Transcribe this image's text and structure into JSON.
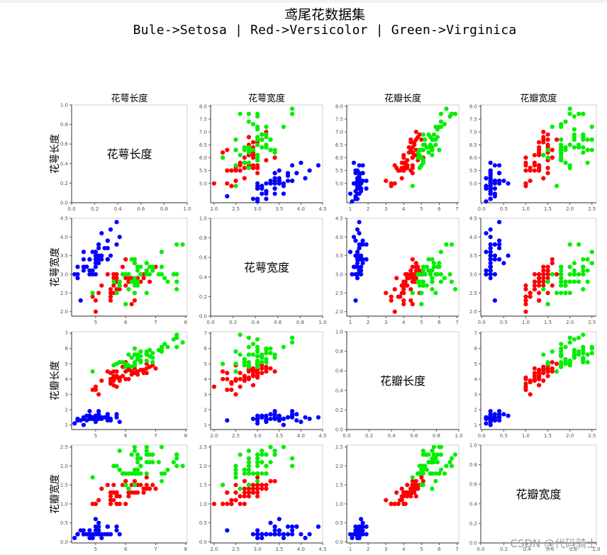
{
  "header": {
    "title": "鸢尾花数据集",
    "subtitle": "Bule->Setosa | Red->Versicolor | Green->Virginica"
  },
  "watermark": "CSDN @代码骑士",
  "colors": {
    "Setosa": "#0000ff",
    "Versicolor": "#ff0000",
    "Virginica": "#00ee00"
  },
  "chart_data": {
    "type": "scatter",
    "title": "鸢尾花数据集",
    "subtitle": "Bule->Setosa | Red->Versicolor | Green->Virginica",
    "layout": "4x4 scatter matrix (pair plot); diagonal panels show feature name text on empty 0-1 axes",
    "features": [
      "花萼长度",
      "花萼宽度",
      "花瓣长度",
      "花瓣宽度"
    ],
    "column_titles": [
      "花萼长度",
      "花萼宽度",
      "花瓣长度",
      "花瓣宽度"
    ],
    "row_labels": [
      "花萼长度",
      "花萼宽度",
      "花瓣长度",
      "花瓣宽度"
    ],
    "legend": [
      {
        "name": "Setosa",
        "color": "blue"
      },
      {
        "name": "Versicolor",
        "color": "red"
      },
      {
        "name": "Virginica",
        "color": "green"
      }
    ],
    "axes": {
      "花萼长度": {
        "range": [
          4.3,
          8.0
        ],
        "ticks": [
          5,
          6,
          7,
          8
        ]
      },
      "花萼宽度": {
        "range": [
          2.0,
          4.5
        ],
        "ticks": [
          2.0,
          2.5,
          3.0,
          3.5,
          4.0,
          4.5
        ],
        "xticks": [
          2.0,
          2.5,
          3.0,
          3.5,
          4.0,
          4.5
        ]
      },
      "花瓣长度": {
        "range": [
          1.0,
          7.0
        ],
        "ticks": [
          1,
          2,
          3,
          4,
          5,
          6,
          7
        ]
      },
      "花瓣宽度": {
        "range": [
          0.0,
          2.5
        ],
        "ticks": [
          0.0,
          0.5,
          1.0,
          1.5,
          2.0,
          2.5
        ]
      },
      "diagonal": {
        "range": [
          0.0,
          1.0
        ],
        "ticks": [
          0.0,
          0.2,
          0.4,
          0.6,
          0.8,
          1.0
        ]
      }
    },
    "grid": false,
    "series": [
      {
        "name": "Setosa",
        "color": "#0000ff",
        "points": [
          [
            5.1,
            3.5,
            1.4,
            0.2
          ],
          [
            4.9,
            3.0,
            1.4,
            0.2
          ],
          [
            4.7,
            3.2,
            1.3,
            0.2
          ],
          [
            4.6,
            3.1,
            1.5,
            0.2
          ],
          [
            5.0,
            3.6,
            1.4,
            0.2
          ],
          [
            5.4,
            3.9,
            1.7,
            0.4
          ],
          [
            4.6,
            3.4,
            1.4,
            0.3
          ],
          [
            5.0,
            3.4,
            1.5,
            0.2
          ],
          [
            4.4,
            2.9,
            1.4,
            0.2
          ],
          [
            4.9,
            3.1,
            1.5,
            0.1
          ],
          [
            5.4,
            3.7,
            1.5,
            0.2
          ],
          [
            4.8,
            3.4,
            1.6,
            0.2
          ],
          [
            4.8,
            3.0,
            1.4,
            0.1
          ],
          [
            4.3,
            3.0,
            1.1,
            0.1
          ],
          [
            5.8,
            4.0,
            1.2,
            0.2
          ],
          [
            5.7,
            4.4,
            1.5,
            0.4
          ],
          [
            5.4,
            3.9,
            1.3,
            0.4
          ],
          [
            5.1,
            3.5,
            1.4,
            0.3
          ],
          [
            5.7,
            3.8,
            1.7,
            0.3
          ],
          [
            5.1,
            3.8,
            1.5,
            0.3
          ],
          [
            5.4,
            3.4,
            1.7,
            0.2
          ],
          [
            5.1,
            3.7,
            1.5,
            0.4
          ],
          [
            4.6,
            3.6,
            1.0,
            0.2
          ],
          [
            5.1,
            3.3,
            1.7,
            0.5
          ],
          [
            4.8,
            3.4,
            1.9,
            0.2
          ],
          [
            5.0,
            3.0,
            1.6,
            0.2
          ],
          [
            5.0,
            3.4,
            1.6,
            0.4
          ],
          [
            5.2,
            3.5,
            1.5,
            0.2
          ],
          [
            5.2,
            3.4,
            1.4,
            0.2
          ],
          [
            4.7,
            3.2,
            1.6,
            0.2
          ],
          [
            4.8,
            3.1,
            1.6,
            0.2
          ],
          [
            5.4,
            3.4,
            1.5,
            0.4
          ],
          [
            5.2,
            4.1,
            1.5,
            0.1
          ],
          [
            5.5,
            4.2,
            1.4,
            0.2
          ],
          [
            4.9,
            3.1,
            1.5,
            0.2
          ],
          [
            5.0,
            3.2,
            1.2,
            0.2
          ],
          [
            5.5,
            3.5,
            1.3,
            0.2
          ],
          [
            4.9,
            3.6,
            1.4,
            0.1
          ],
          [
            4.4,
            3.0,
            1.3,
            0.2
          ],
          [
            5.1,
            3.4,
            1.5,
            0.2
          ],
          [
            5.0,
            3.5,
            1.3,
            0.3
          ],
          [
            4.5,
            2.3,
            1.3,
            0.3
          ],
          [
            4.4,
            3.2,
            1.3,
            0.2
          ],
          [
            5.0,
            3.5,
            1.6,
            0.6
          ],
          [
            5.1,
            3.8,
            1.9,
            0.4
          ],
          [
            4.8,
            3.0,
            1.4,
            0.3
          ],
          [
            5.1,
            3.8,
            1.6,
            0.2
          ],
          [
            4.6,
            3.2,
            1.4,
            0.2
          ],
          [
            5.3,
            3.7,
            1.5,
            0.2
          ],
          [
            5.0,
            3.3,
            1.4,
            0.2
          ]
        ]
      },
      {
        "name": "Versicolor",
        "color": "#ff0000",
        "points": [
          [
            7.0,
            3.2,
            4.7,
            1.4
          ],
          [
            6.4,
            3.2,
            4.5,
            1.5
          ],
          [
            6.9,
            3.1,
            4.9,
            1.5
          ],
          [
            5.5,
            2.3,
            4.0,
            1.3
          ],
          [
            6.5,
            2.8,
            4.6,
            1.5
          ],
          [
            5.7,
            2.8,
            4.5,
            1.3
          ],
          [
            6.3,
            3.3,
            4.7,
            1.6
          ],
          [
            4.9,
            2.4,
            3.3,
            1.0
          ],
          [
            6.6,
            2.9,
            4.6,
            1.3
          ],
          [
            5.2,
            2.7,
            3.9,
            1.4
          ],
          [
            5.0,
            2.0,
            3.5,
            1.0
          ],
          [
            5.9,
            3.0,
            4.2,
            1.5
          ],
          [
            6.0,
            2.2,
            4.0,
            1.0
          ],
          [
            6.1,
            2.9,
            4.7,
            1.4
          ],
          [
            5.6,
            2.9,
            3.6,
            1.3
          ],
          [
            6.7,
            3.1,
            4.4,
            1.4
          ],
          [
            5.6,
            3.0,
            4.5,
            1.5
          ],
          [
            5.8,
            2.7,
            4.1,
            1.0
          ],
          [
            6.2,
            2.2,
            4.5,
            1.5
          ],
          [
            5.6,
            2.5,
            3.9,
            1.1
          ],
          [
            5.9,
            3.2,
            4.8,
            1.8
          ],
          [
            6.1,
            2.8,
            4.0,
            1.3
          ],
          [
            6.3,
            2.5,
            4.9,
            1.5
          ],
          [
            6.1,
            2.8,
            4.7,
            1.2
          ],
          [
            6.4,
            2.9,
            4.3,
            1.3
          ],
          [
            6.6,
            3.0,
            4.4,
            1.4
          ],
          [
            6.8,
            2.8,
            4.8,
            1.4
          ],
          [
            6.7,
            3.0,
            5.0,
            1.7
          ],
          [
            6.0,
            2.9,
            4.5,
            1.5
          ],
          [
            5.7,
            2.6,
            3.5,
            1.0
          ],
          [
            5.5,
            2.4,
            3.8,
            1.1
          ],
          [
            5.5,
            2.4,
            3.7,
            1.0
          ],
          [
            5.8,
            2.7,
            3.9,
            1.2
          ],
          [
            6.0,
            2.7,
            5.1,
            1.6
          ],
          [
            5.4,
            3.0,
            4.5,
            1.5
          ],
          [
            6.0,
            3.4,
            4.5,
            1.6
          ],
          [
            6.7,
            3.1,
            4.7,
            1.5
          ],
          [
            6.3,
            2.3,
            4.4,
            1.3
          ],
          [
            5.6,
            3.0,
            4.1,
            1.3
          ],
          [
            5.5,
            2.5,
            4.0,
            1.3
          ],
          [
            5.5,
            2.6,
            4.4,
            1.2
          ],
          [
            6.1,
            3.0,
            4.6,
            1.4
          ],
          [
            5.8,
            2.6,
            4.0,
            1.2
          ],
          [
            5.0,
            2.3,
            3.3,
            1.0
          ],
          [
            5.6,
            2.7,
            4.2,
            1.3
          ],
          [
            5.7,
            3.0,
            4.2,
            1.2
          ],
          [
            5.7,
            2.9,
            4.2,
            1.3
          ],
          [
            6.2,
            2.9,
            4.3,
            1.3
          ],
          [
            5.1,
            2.5,
            3.0,
            1.1
          ],
          [
            5.7,
            2.8,
            4.1,
            1.3
          ]
        ]
      },
      {
        "name": "Virginica",
        "color": "#00ee00",
        "points": [
          [
            6.3,
            3.3,
            6.0,
            2.5
          ],
          [
            5.8,
            2.7,
            5.1,
            1.9
          ],
          [
            7.1,
            3.0,
            5.9,
            2.1
          ],
          [
            6.3,
            2.9,
            5.6,
            1.8
          ],
          [
            6.5,
            3.0,
            5.8,
            2.2
          ],
          [
            7.6,
            3.0,
            6.6,
            2.1
          ],
          [
            4.9,
            2.5,
            4.5,
            1.7
          ],
          [
            7.3,
            2.9,
            6.3,
            1.8
          ],
          [
            6.7,
            2.5,
            5.8,
            1.8
          ],
          [
            7.2,
            3.6,
            6.1,
            2.5
          ],
          [
            6.5,
            3.2,
            5.1,
            2.0
          ],
          [
            6.4,
            2.7,
            5.3,
            1.9
          ],
          [
            6.8,
            3.0,
            5.5,
            2.1
          ],
          [
            5.7,
            2.5,
            5.0,
            2.0
          ],
          [
            5.8,
            2.8,
            5.1,
            2.4
          ],
          [
            6.4,
            3.2,
            5.3,
            2.3
          ],
          [
            6.5,
            3.0,
            5.5,
            1.8
          ],
          [
            7.7,
            3.8,
            6.7,
            2.2
          ],
          [
            7.7,
            2.6,
            6.9,
            2.3
          ],
          [
            6.0,
            2.2,
            5.0,
            1.5
          ],
          [
            6.9,
            3.2,
            5.7,
            2.3
          ],
          [
            5.6,
            2.8,
            4.9,
            2.0
          ],
          [
            7.7,
            2.8,
            6.7,
            2.0
          ],
          [
            6.3,
            2.7,
            4.9,
            1.8
          ],
          [
            6.7,
            3.3,
            5.7,
            2.1
          ],
          [
            7.2,
            3.2,
            6.0,
            1.8
          ],
          [
            6.2,
            2.8,
            4.8,
            1.8
          ],
          [
            6.1,
            3.0,
            4.9,
            1.8
          ],
          [
            6.4,
            2.8,
            5.6,
            2.1
          ],
          [
            7.2,
            3.0,
            5.8,
            1.6
          ],
          [
            7.4,
            2.8,
            6.1,
            1.9
          ],
          [
            7.9,
            3.8,
            6.4,
            2.0
          ],
          [
            6.4,
            2.8,
            5.6,
            2.2
          ],
          [
            6.3,
            2.8,
            5.1,
            1.5
          ],
          [
            6.1,
            2.6,
            5.6,
            1.4
          ],
          [
            7.7,
            3.0,
            6.1,
            2.3
          ],
          [
            6.3,
            3.4,
            5.6,
            2.4
          ],
          [
            6.4,
            3.1,
            5.5,
            1.8
          ],
          [
            6.0,
            3.0,
            4.8,
            1.8
          ],
          [
            6.9,
            3.1,
            5.4,
            2.1
          ],
          [
            6.7,
            3.1,
            5.6,
            2.4
          ],
          [
            6.9,
            3.1,
            5.1,
            2.3
          ],
          [
            5.8,
            2.7,
            5.1,
            1.9
          ],
          [
            6.8,
            3.2,
            5.9,
            2.3
          ],
          [
            6.7,
            3.3,
            5.7,
            2.5
          ],
          [
            6.7,
            3.0,
            5.2,
            2.3
          ],
          [
            6.3,
            2.5,
            5.0,
            1.9
          ],
          [
            6.5,
            3.0,
            5.2,
            2.0
          ],
          [
            6.2,
            3.4,
            5.4,
            2.3
          ],
          [
            5.9,
            3.0,
            5.1,
            1.8
          ]
        ]
      }
    ]
  }
}
